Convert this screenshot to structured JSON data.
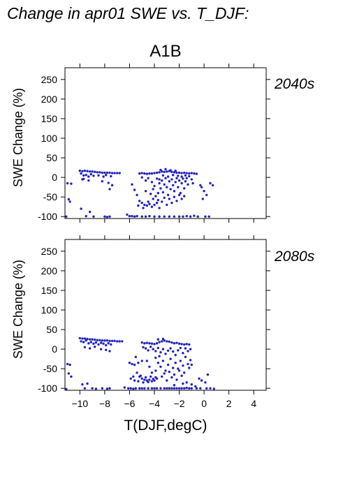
{
  "page": {
    "title": "Change in apr01 SWE vs. T_DJF:",
    "scenario": "A1B",
    "xlabel": "T(DJF,degC)"
  },
  "style": {
    "point_color": "#2222bb",
    "label_color": "#2a2ab8"
  },
  "chart_data": [
    {
      "type": "scatter",
      "period": "2040s",
      "ylabel": "SWE Change (%)",
      "xlim": [
        -11.2,
        5
      ],
      "ylim": [
        -105,
        280
      ],
      "xticks": [
        -10,
        -8,
        -6,
        -4,
        -2,
        0,
        2,
        4
      ],
      "yticks": [
        -100,
        -50,
        0,
        50,
        100,
        150,
        200,
        250
      ],
      "points": [
        [
          -11.0,
          -15
        ],
        [
          -10.7,
          -16
        ],
        [
          -10.9,
          -56
        ],
        [
          -10.8,
          -62
        ],
        [
          -11.1,
          -100
        ],
        [
          -10.0,
          17
        ],
        [
          -9.8,
          16
        ],
        [
          -9.6,
          17
        ],
        [
          -9.4,
          16
        ],
        [
          -9.2,
          15
        ],
        [
          -9.0,
          15
        ],
        [
          -8.8,
          14
        ],
        [
          -8.6,
          13
        ],
        [
          -8.4,
          13
        ],
        [
          -8.2,
          12
        ],
        [
          -8.0,
          12
        ],
        [
          -7.8,
          12
        ],
        [
          -7.6,
          12
        ],
        [
          -7.4,
          11
        ],
        [
          -7.2,
          11
        ],
        [
          -7.0,
          11
        ],
        [
          -6.8,
          11
        ],
        [
          -9.9,
          10
        ],
        [
          -9.7,
          5
        ],
        [
          -9.5,
          6
        ],
        [
          -9.3,
          2
        ],
        [
          -9.1,
          8
        ],
        [
          -8.9,
          4
        ],
        [
          -8.5,
          5
        ],
        [
          -8.1,
          2
        ],
        [
          -7.9,
          6
        ],
        [
          -7.5,
          3
        ],
        [
          -9.8,
          -5
        ],
        [
          -9.3,
          -8
        ],
        [
          -8.2,
          -10
        ],
        [
          -7.7,
          -14
        ],
        [
          -7.4,
          -20
        ],
        [
          -9.7,
          -4
        ],
        [
          -7.6,
          -30
        ],
        [
          -9.2,
          -88
        ],
        [
          -9.9,
          -80
        ],
        [
          -9.5,
          -99
        ],
        [
          -8.9,
          -100
        ],
        [
          -8.0,
          -100
        ],
        [
          -7.8,
          -101
        ],
        [
          -7.6,
          -100
        ],
        [
          -6.2,
          -95
        ],
        [
          -6.0,
          -99
        ],
        [
          -5.8,
          -99
        ],
        [
          -5.6,
          -100
        ],
        [
          -5.4,
          -99
        ],
        [
          -5.0,
          -100
        ],
        [
          -4.7,
          -100
        ],
        [
          -4.4,
          -99
        ],
        [
          -4.0,
          -100
        ],
        [
          -3.6,
          -100
        ],
        [
          -3.2,
          -100
        ],
        [
          -2.8,
          -100
        ],
        [
          -2.4,
          -100
        ],
        [
          -2.0,
          -100
        ],
        [
          -1.7,
          -100
        ],
        [
          -1.4,
          -99
        ],
        [
          -1.1,
          -100
        ],
        [
          -0.8,
          -98
        ],
        [
          -0.5,
          -100
        ],
        [
          0.1,
          -100
        ],
        [
          0.4,
          -100
        ],
        [
          -5.2,
          10
        ],
        [
          -5.0,
          11
        ],
        [
          -4.8,
          10
        ],
        [
          -4.6,
          9
        ],
        [
          -4.4,
          10
        ],
        [
          -4.2,
          10
        ],
        [
          -4.0,
          11
        ],
        [
          -3.8,
          12
        ],
        [
          -3.6,
          13
        ],
        [
          -3.4,
          15
        ],
        [
          -3.2,
          14
        ],
        [
          -3.0,
          15
        ],
        [
          -2.8,
          16
        ],
        [
          -2.6,
          14
        ],
        [
          -2.4,
          13
        ],
        [
          -2.2,
          12
        ],
        [
          -2.0,
          12
        ],
        [
          -1.8,
          11
        ],
        [
          -1.6,
          12
        ],
        [
          -1.4,
          11
        ],
        [
          -1.2,
          10
        ],
        [
          -1.0,
          11
        ],
        [
          -0.8,
          10
        ],
        [
          -0.6,
          9
        ],
        [
          -3.5,
          19
        ],
        [
          -3.1,
          21
        ],
        [
          -2.7,
          18
        ],
        [
          -2.3,
          17
        ],
        [
          -5.0,
          0
        ],
        [
          -4.7,
          -8
        ],
        [
          -4.5,
          -2
        ],
        [
          -4.2,
          -12
        ],
        [
          -4.0,
          -22
        ],
        [
          -3.8,
          -3
        ],
        [
          -3.6,
          -15
        ],
        [
          -3.5,
          -28
        ],
        [
          -3.4,
          -8
        ],
        [
          -3.3,
          -38
        ],
        [
          -3.2,
          -18
        ],
        [
          -3.1,
          -2
        ],
        [
          -3.0,
          -25
        ],
        [
          -2.9,
          -45
        ],
        [
          -2.8,
          -10
        ],
        [
          -2.7,
          -30
        ],
        [
          -2.6,
          -5
        ],
        [
          -2.5,
          -20
        ],
        [
          -2.4,
          -35
        ],
        [
          -2.3,
          -12
        ],
        [
          -2.2,
          -2
        ],
        [
          -2.1,
          -25
        ],
        [
          -2.0,
          -8
        ],
        [
          -1.9,
          -40
        ],
        [
          -1.8,
          -15
        ],
        [
          -1.7,
          -3
        ],
        [
          -1.6,
          -28
        ],
        [
          -1.5,
          -10
        ],
        [
          -1.4,
          -2
        ],
        [
          -1.3,
          -18
        ],
        [
          -3.9,
          -48
        ],
        [
          -3.7,
          -58
        ],
        [
          -3.4,
          -62
        ],
        [
          -3.2,
          -52
        ],
        [
          -3.0,
          -70
        ],
        [
          -2.8,
          -55
        ],
        [
          -2.6,
          -65
        ],
        [
          -2.4,
          -50
        ],
        [
          -2.2,
          -60
        ],
        [
          -2.0,
          -45
        ],
        [
          -1.8,
          -55
        ],
        [
          -1.6,
          -48
        ],
        [
          -3.6,
          -5
        ],
        [
          -3.3,
          5
        ],
        [
          -2.9,
          2
        ],
        [
          -2.5,
          6
        ],
        [
          -2.1,
          4
        ],
        [
          -1.8,
          2
        ],
        [
          -1.5,
          5
        ],
        [
          -1.2,
          3
        ],
        [
          -1.0,
          -5
        ],
        [
          -0.9,
          -15
        ],
        [
          -5.4,
          -45
        ],
        [
          -5.2,
          -60
        ],
        [
          -5.0,
          -65
        ],
        [
          -4.8,
          -70
        ],
        [
          -4.6,
          -72
        ],
        [
          -4.4,
          -68
        ],
        [
          -4.2,
          -75
        ],
        [
          -4.0,
          -70
        ],
        [
          -3.8,
          -65
        ],
        [
          -3.6,
          -78
        ],
        [
          -5.3,
          -72
        ],
        [
          -4.9,
          -78
        ],
        [
          -4.5,
          -62
        ],
        [
          -4.1,
          -55
        ],
        [
          -3.7,
          -40
        ],
        [
          -5.8,
          -18
        ],
        [
          -5.6,
          -32
        ],
        [
          -4.7,
          -35
        ],
        [
          -4.3,
          -42
        ],
        [
          -4.1,
          -30
        ],
        [
          -0.2,
          -25
        ],
        [
          0.0,
          -35
        ],
        [
          -0.3,
          -20
        ],
        [
          0.5,
          -15
        ],
        [
          0.7,
          -20
        ],
        [
          0.2,
          -45
        ],
        [
          -0.1,
          -55
        ]
      ]
    },
    {
      "type": "scatter",
      "period": "2080s",
      "ylabel": "SWE Change (%)",
      "xlim": [
        -11.2,
        5
      ],
      "ylim": [
        -105,
        280
      ],
      "xticks": [
        -10,
        -8,
        -6,
        -4,
        -2,
        0,
        2,
        4
      ],
      "yticks": [
        -100,
        -50,
        0,
        50,
        100,
        150,
        200,
        250
      ],
      "points": [
        [
          -11.0,
          -38
        ],
        [
          -10.8,
          -40
        ],
        [
          -10.9,
          -62
        ],
        [
          -10.7,
          -70
        ],
        [
          -11.1,
          -102
        ],
        [
          -10.0,
          28
        ],
        [
          -9.8,
          27
        ],
        [
          -9.6,
          27
        ],
        [
          -9.4,
          26
        ],
        [
          -9.2,
          25
        ],
        [
          -9.0,
          25
        ],
        [
          -8.8,
          24
        ],
        [
          -8.6,
          23
        ],
        [
          -8.4,
          23
        ],
        [
          -8.2,
          22
        ],
        [
          -8.0,
          22
        ],
        [
          -7.8,
          22
        ],
        [
          -7.6,
          21
        ],
        [
          -7.4,
          21
        ],
        [
          -7.2,
          21
        ],
        [
          -7.0,
          20
        ],
        [
          -6.8,
          20
        ],
        [
          -6.6,
          20
        ],
        [
          -9.9,
          20
        ],
        [
          -9.7,
          18
        ],
        [
          -9.5,
          22
        ],
        [
          -9.3,
          15
        ],
        [
          -9.1,
          18
        ],
        [
          -8.9,
          14
        ],
        [
          -8.7,
          17
        ],
        [
          -8.5,
          12
        ],
        [
          -8.3,
          16
        ],
        [
          -8.1,
          14
        ],
        [
          -7.9,
          10
        ],
        [
          -7.7,
          15
        ],
        [
          -7.5,
          12
        ],
        [
          -9.6,
          5
        ],
        [
          -9.2,
          2
        ],
        [
          -8.8,
          6
        ],
        [
          -8.3,
          0
        ],
        [
          -7.9,
          -2
        ],
        [
          -7.6,
          -5
        ],
        [
          -9.4,
          -88
        ],
        [
          -9.8,
          -90
        ],
        [
          -9.6,
          -100
        ],
        [
          -9.0,
          -100
        ],
        [
          -8.7,
          -101
        ],
        [
          -8.2,
          -100
        ],
        [
          -7.8,
          -101
        ],
        [
          -7.6,
          -100
        ],
        [
          -6.4,
          -98
        ],
        [
          -6.1,
          -100
        ],
        [
          -5.9,
          -100
        ],
        [
          -5.7,
          -101
        ],
        [
          -5.5,
          -100
        ],
        [
          -5.2,
          -100
        ],
        [
          -5.0,
          -100
        ],
        [
          -4.8,
          -100
        ],
        [
          -4.5,
          -100
        ],
        [
          -4.2,
          -100
        ],
        [
          -4.0,
          -100
        ],
        [
          -3.8,
          -100
        ],
        [
          -3.5,
          -100
        ],
        [
          -3.2,
          -100
        ],
        [
          -3.0,
          -100
        ],
        [
          -2.8,
          -100
        ],
        [
          -2.6,
          -100
        ],
        [
          -2.4,
          -100
        ],
        [
          -2.2,
          -100
        ],
        [
          -2.0,
          -100
        ],
        [
          -1.8,
          -100
        ],
        [
          -1.6,
          -100
        ],
        [
          -1.4,
          -99
        ],
        [
          -1.2,
          -100
        ],
        [
          -1.0,
          -100
        ],
        [
          -0.6,
          -100
        ],
        [
          -0.3,
          -100
        ],
        [
          0.2,
          -100
        ],
        [
          0.5,
          -100
        ],
        [
          0.8,
          -101
        ],
        [
          -5.0,
          17
        ],
        [
          -4.8,
          15
        ],
        [
          -4.6,
          16
        ],
        [
          -4.4,
          15
        ],
        [
          -4.2,
          14
        ],
        [
          -4.0,
          13
        ],
        [
          -3.8,
          15
        ],
        [
          -3.6,
          18
        ],
        [
          -3.4,
          20
        ],
        [
          -3.2,
          22
        ],
        [
          -3.0,
          20
        ],
        [
          -2.8,
          19
        ],
        [
          -2.6,
          17
        ],
        [
          -2.4,
          15
        ],
        [
          -2.2,
          16
        ],
        [
          -2.0,
          14
        ],
        [
          -1.8,
          13
        ],
        [
          -1.6,
          12
        ],
        [
          -1.4,
          13
        ],
        [
          -1.2,
          12
        ],
        [
          -3.7,
          25
        ],
        [
          -3.3,
          26
        ],
        [
          -4.9,
          5
        ],
        [
          -4.7,
          2
        ],
        [
          -4.5,
          -3
        ],
        [
          -4.3,
          6
        ],
        [
          -4.1,
          0
        ],
        [
          -3.9,
          -5
        ],
        [
          -3.7,
          3
        ],
        [
          -3.5,
          -8
        ],
        [
          -3.3,
          0
        ],
        [
          -3.1,
          -12
        ],
        [
          -2.9,
          -4
        ],
        [
          -2.7,
          2
        ],
        [
          -2.5,
          -6
        ],
        [
          -2.3,
          -15
        ],
        [
          -2.1,
          -3
        ],
        [
          -1.9,
          3
        ],
        [
          -1.7,
          -10
        ],
        [
          -1.5,
          2
        ],
        [
          -1.3,
          -5
        ],
        [
          -1.1,
          0
        ],
        [
          -3.9,
          -22
        ],
        [
          -3.7,
          -35
        ],
        [
          -3.5,
          -45
        ],
        [
          -3.3,
          -30
        ],
        [
          -3.1,
          -55
        ],
        [
          -2.9,
          -40
        ],
        [
          -2.7,
          -25
        ],
        [
          -2.5,
          -48
        ],
        [
          -2.3,
          -35
        ],
        [
          -2.1,
          -50
        ],
        [
          -1.9,
          -30
        ],
        [
          -1.7,
          -42
        ],
        [
          -1.5,
          -20
        ],
        [
          -1.3,
          -38
        ],
        [
          -1.1,
          -28
        ],
        [
          -3.6,
          -18
        ],
        [
          -3.2,
          -62
        ],
        [
          -2.8,
          -58
        ],
        [
          -2.4,
          -65
        ],
        [
          -2.0,
          -55
        ],
        [
          -1.6,
          -60
        ],
        [
          -1.2,
          -48
        ],
        [
          -1.0,
          -40
        ],
        [
          -3.8,
          -75
        ],
        [
          -3.4,
          -70
        ],
        [
          -3.0,
          -80
        ],
        [
          -2.6,
          -72
        ],
        [
          -2.2,
          -78
        ],
        [
          -1.8,
          -68
        ],
        [
          -5.4,
          -60
        ],
        [
          -5.2,
          -70
        ],
        [
          -5.0,
          -75
        ],
        [
          -4.8,
          -78
        ],
        [
          -4.6,
          -80
        ],
        [
          -4.4,
          -78
        ],
        [
          -4.2,
          -82
        ],
        [
          -4.0,
          -80
        ],
        [
          -5.6,
          -80
        ],
        [
          -5.3,
          -82
        ],
        [
          -4.9,
          -85
        ],
        [
          -4.5,
          -84
        ],
        [
          -4.1,
          -76
        ],
        [
          -3.9,
          -72
        ],
        [
          -5.1,
          -68
        ],
        [
          -4.7,
          -72
        ],
        [
          -4.3,
          -70
        ],
        [
          -6.0,
          -35
        ],
        [
          -5.8,
          -38
        ],
        [
          -5.6,
          -40
        ],
        [
          -5.5,
          -20
        ],
        [
          -5.3,
          -35
        ],
        [
          -4.6,
          -30
        ],
        [
          -4.4,
          -45
        ],
        [
          -5.0,
          -30
        ],
        [
          -5.9,
          -75
        ],
        [
          -5.7,
          -70
        ],
        [
          -4.2,
          -60
        ],
        [
          -3.9,
          -55
        ],
        [
          -0.2,
          -80
        ],
        [
          0.1,
          -85
        ],
        [
          0.3,
          -65
        ],
        [
          -0.4,
          -75
        ],
        [
          -1.0,
          -90
        ],
        [
          -1.4,
          -85
        ],
        [
          -0.7,
          -95
        ],
        [
          -2.4,
          -92
        ],
        [
          -1.7,
          -88
        ]
      ]
    }
  ]
}
